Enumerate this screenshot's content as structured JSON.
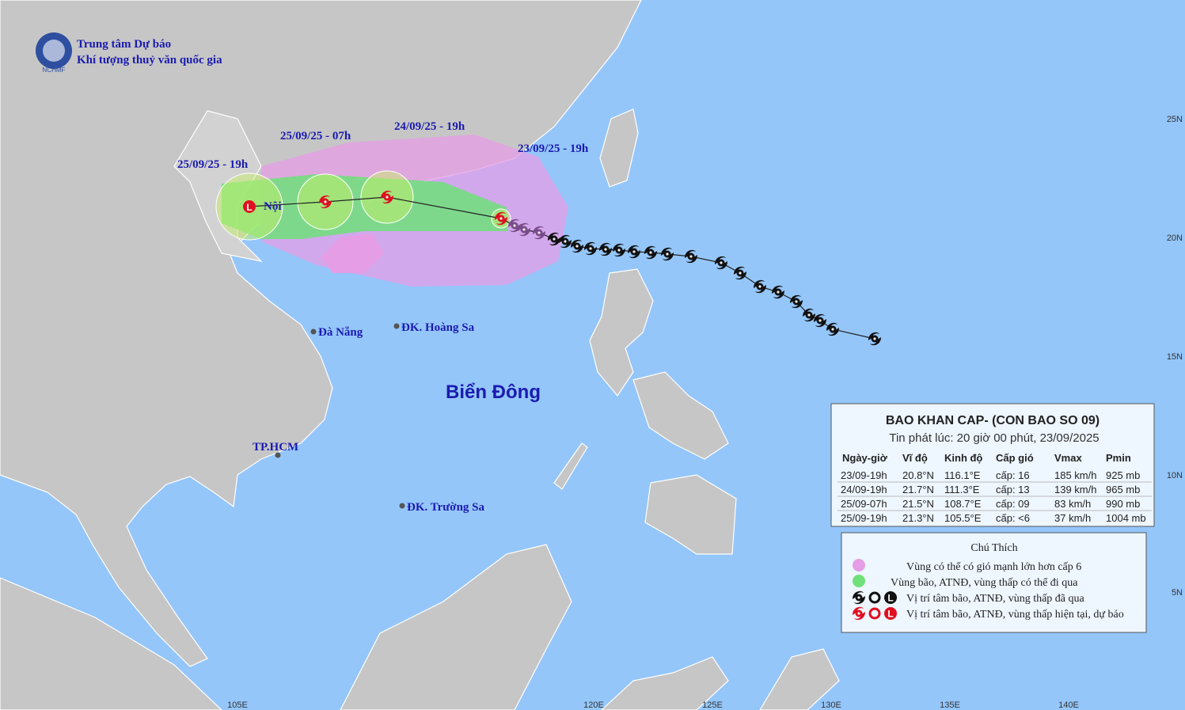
{
  "header": {
    "line1": "Trung tâm Dự báo",
    "line2": "Khí tượng thuỷ văn quốc gia",
    "logo": "NCHMF"
  },
  "map": {
    "time_labels": [
      "25/09/25 - 19h",
      "25/09/25 - 07h",
      "24/09/25 - 19h",
      "23/09/25 - 19h"
    ],
    "places": [
      "Nội",
      "Đà Nẵng",
      "ĐK. Hoàng Sa",
      "TP.HCM",
      "ĐK. Trường Sa"
    ],
    "sea": "Biển Đông",
    "marker_letter": "L",
    "lat_labels": [
      "25N",
      "20N",
      "15N",
      "10N",
      "5N"
    ],
    "lon_labels": [
      "105E",
      "120E",
      "125E",
      "130E",
      "135E",
      "140E"
    ]
  },
  "bulletin": {
    "title": "BAO KHAN CAP- (CON BAO SO 09)",
    "issued": "Tin phát lúc: 20 giờ 00 phút, 23/09/2025",
    "columns": [
      "Ngày-giờ",
      "Vĩ độ",
      "Kinh độ",
      "Cấp gió",
      "Vmax",
      "Pmin"
    ],
    "rows": [
      [
        "23/09-19h",
        "20.8°N",
        "116.1°E",
        "cấp: 16",
        "185 km/h",
        "925 mb"
      ],
      [
        "24/09-19h",
        "21.7°N",
        "111.3°E",
        "cấp: 13",
        "139 km/h",
        "965 mb"
      ],
      [
        "25/09-07h",
        "21.5°N",
        "108.7°E",
        "cấp: 09",
        "83 km/h",
        "990 mb"
      ],
      [
        "25/09-19h",
        "21.3°N",
        "105.5°E",
        "cấp: <6",
        "37 km/h",
        "1004 mb"
      ]
    ]
  },
  "legend": {
    "title": "Chú Thích",
    "items": [
      "Vùng có thể có gió mạnh lớn hơn cấp 6",
      "Vùng bão, ATNĐ, vùng thấp có thể đi qua",
      "Vị trí tâm bão, ATNĐ, vùng thấp đã qua",
      "Vị trí tâm bão, ATNĐ, vùng thấp hiện tại, dự báo"
    ]
  }
}
